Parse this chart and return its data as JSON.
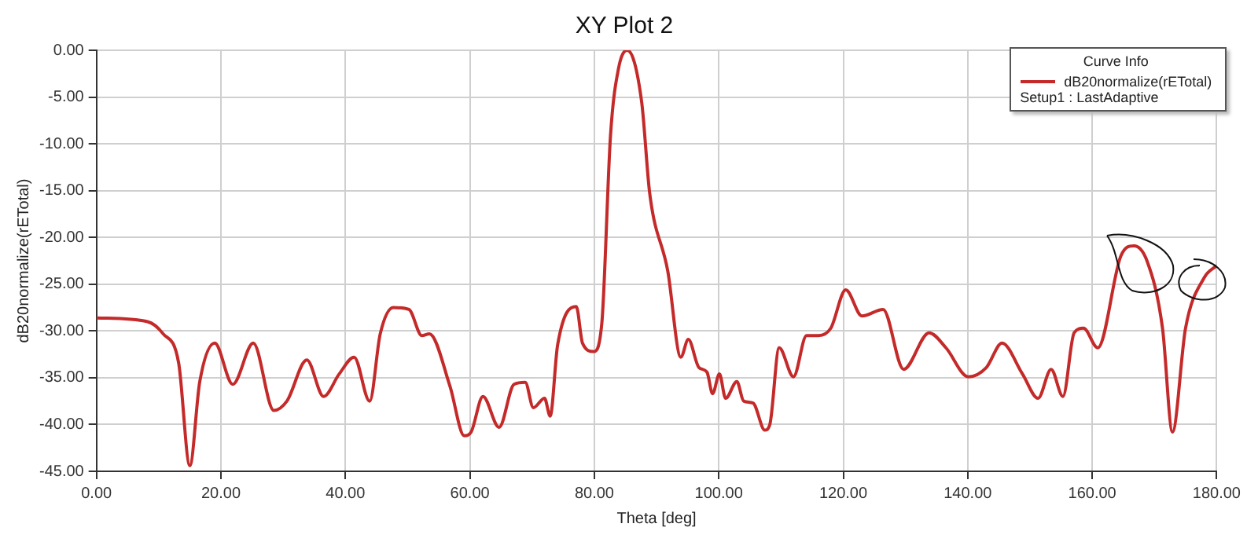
{
  "chart_data": {
    "type": "line",
    "title": "XY Plot 2",
    "xlabel": "Theta [deg]",
    "ylabel": "dB20normalize(rETotal)",
    "legend_title": "Curve Info",
    "legend": "top right",
    "grid": true,
    "marker": "none",
    "line_style": "solid",
    "annotations": [
      "Setup1 : LastAdaptive"
    ],
    "xlim": [
      0,
      180
    ],
    "ylim": [
      -45,
      0
    ],
    "xticks": [
      {
        "value": 0,
        "label": "0.00"
      },
      {
        "value": 20,
        "label": "20.00"
      },
      {
        "value": 40,
        "label": "40.00"
      },
      {
        "value": 60,
        "label": "60.00"
      },
      {
        "value": 80,
        "label": "80.00"
      },
      {
        "value": 100,
        "label": "100.00"
      },
      {
        "value": 120,
        "label": "120.00"
      },
      {
        "value": 140,
        "label": "140.00"
      },
      {
        "value": 160,
        "label": "160.00"
      },
      {
        "value": 180,
        "label": "180.00"
      }
    ],
    "yticks": [
      {
        "value": 0,
        "label": "0.00"
      },
      {
        "value": -5,
        "label": "-5.00"
      },
      {
        "value": -10,
        "label": "-10.00"
      },
      {
        "value": -15,
        "label": "-15.00"
      },
      {
        "value": -20,
        "label": "-20.00"
      },
      {
        "value": -25,
        "label": "-25.00"
      },
      {
        "value": -30,
        "label": "-30.00"
      },
      {
        "value": -35,
        "label": "-35.00"
      },
      {
        "value": -40,
        "label": "-40.00"
      },
      {
        "value": -45,
        "label": "-45.00"
      }
    ],
    "series": [
      {
        "name": "dB20normalize(rETotal)",
        "color": "#c42a2a",
        "x": [
          0,
          8.2,
          10.7,
          13.2,
          15,
          16.6,
          19,
          21.9,
          25.2,
          28.5,
          30.6,
          33.8,
          36.5,
          39,
          41.4,
          43.9,
          45.6,
          47.7,
          50.2,
          52.3,
          53.5,
          56.8,
          59.1,
          60.2,
          62.1,
          64.7,
          67.1,
          68.9,
          70.2,
          72,
          72.9,
          74.1,
          77.1,
          78.1,
          79.9,
          81.2,
          82.6,
          83.9,
          85.3,
          87.6,
          88.9,
          91.8,
          93.9,
          95.1,
          96.8,
          98.1,
          99,
          100.1,
          101.1,
          102.9,
          104,
          105.5,
          107.4,
          108.2,
          109.7,
          112,
          114.1,
          116,
          118,
          120.4,
          123,
          126.4,
          129.7,
          133.8,
          136.5,
          140.1,
          143,
          145.5,
          148.8,
          151.3,
          153.4,
          155.3,
          157.1,
          158.6,
          160.9,
          164.6,
          166.7,
          168.8,
          171.3,
          172.9,
          175,
          178,
          180
        ],
        "values": [
          -28.6,
          -29,
          -30.3,
          -33.4,
          -44.4,
          -35.4,
          -31.3,
          -35.7,
          -31.3,
          -38.5,
          -37.5,
          -33.1,
          -37,
          -34.6,
          -32.8,
          -37.5,
          -30.3,
          -27.5,
          -27.7,
          -30.5,
          -30.3,
          -35.9,
          -41.2,
          -40.8,
          -37,
          -40.3,
          -35.7,
          -35.5,
          -38.2,
          -37.2,
          -39.1,
          -31.5,
          -27.4,
          -31.3,
          -32.2,
          -29.2,
          -9.1,
          -1.9,
          0,
          -5.5,
          -15.3,
          -23.6,
          -32.8,
          -30.9,
          -33.9,
          -34.4,
          -36.7,
          -34.6,
          -37.2,
          -35.4,
          -37.5,
          -37.7,
          -40.6,
          -40,
          -31.8,
          -34.9,
          -30.5,
          -30.5,
          -29.7,
          -25.6,
          -28.4,
          -27.7,
          -34.1,
          -30.2,
          -31.8,
          -34.9,
          -33.9,
          -31.3,
          -34.6,
          -37.2,
          -34.1,
          -37,
          -30.2,
          -29.7,
          -31.8,
          -22,
          -20.9,
          -22.5,
          -29.7,
          -40.8,
          -29.7,
          -24.3,
          -23
        ]
      }
    ]
  }
}
